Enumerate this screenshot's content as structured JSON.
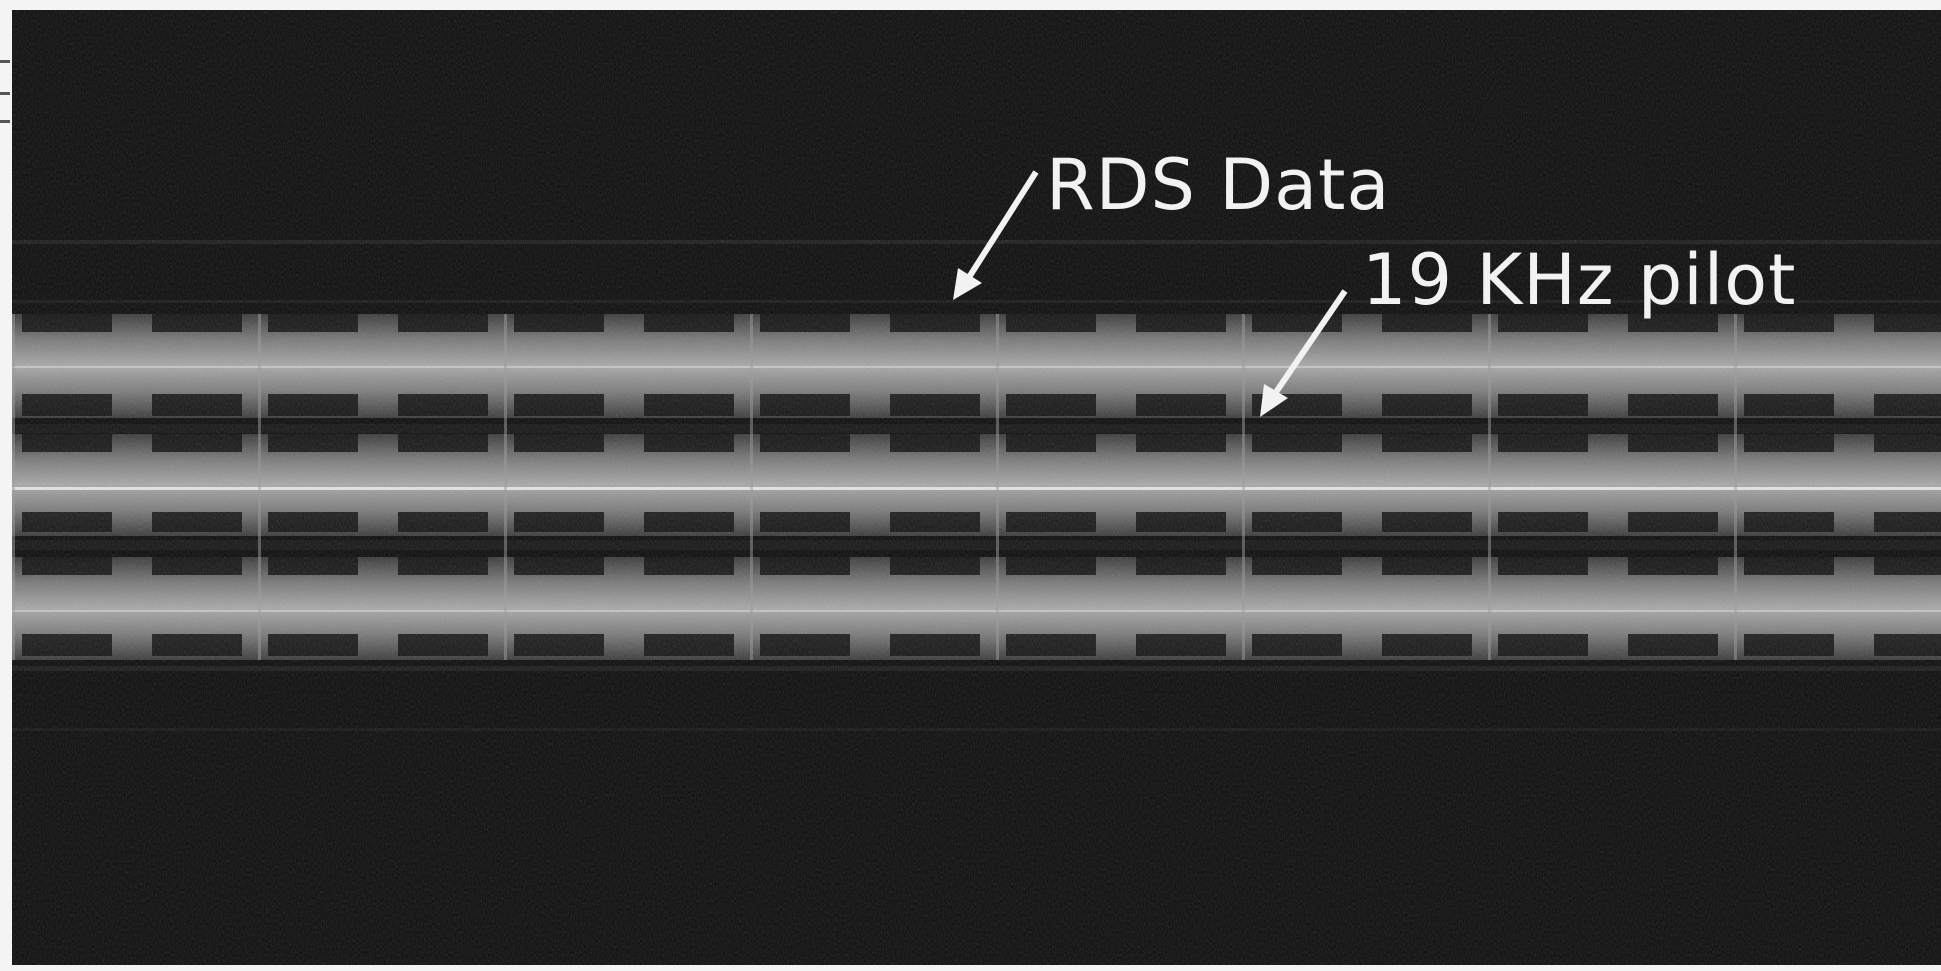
{
  "image": {
    "kind": "spectrogram waterfall",
    "background_color": "#0b0b0b",
    "band_color": "#bdbdbd",
    "frame_color": "#f4f4f4"
  },
  "annotations": {
    "rds_data": "RDS Data",
    "pilot_19khz": "19 KHz pilot"
  }
}
